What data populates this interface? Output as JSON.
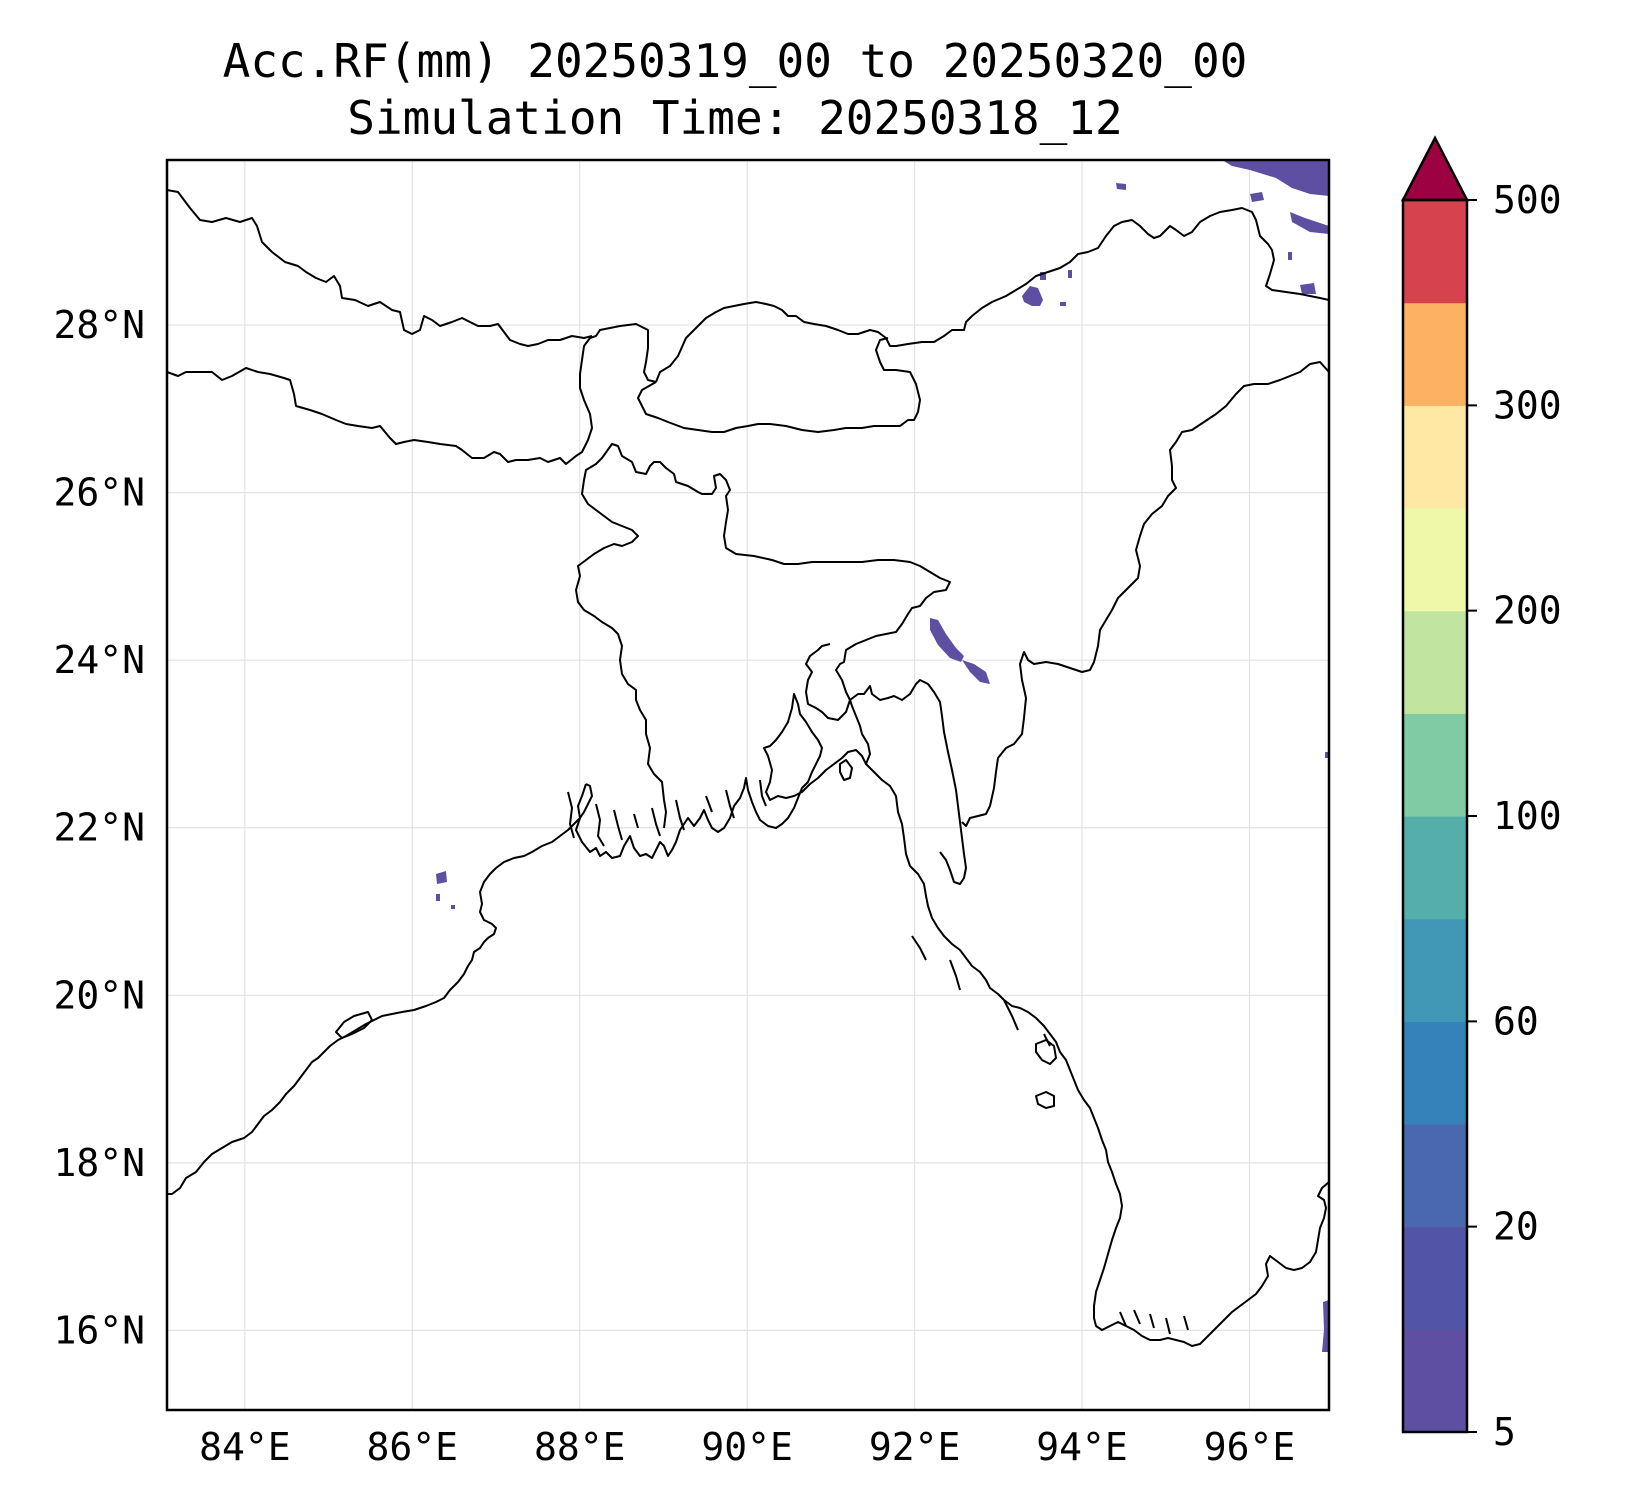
{
  "title": {
    "line1": "Acc.RF(mm) 20250319_00 to 20250320_00",
    "line2": "Simulation Time: 20250318_12"
  },
  "map": {
    "extent": {
      "lon_min": 83.07,
      "lon_max": 96.95,
      "lat_min": 15.05,
      "lat_max": 29.97
    },
    "x_ticks": [
      {
        "lon": 84,
        "label": "84°E"
      },
      {
        "lon": 86,
        "label": "86°E"
      },
      {
        "lon": 88,
        "label": "88°E"
      },
      {
        "lon": 90,
        "label": "90°E"
      },
      {
        "lon": 92,
        "label": "92°E"
      },
      {
        "lon": 94,
        "label": "94°E"
      },
      {
        "lon": 96,
        "label": "96°E"
      }
    ],
    "y_ticks": [
      {
        "lat": 16,
        "label": "16°N"
      },
      {
        "lat": 18,
        "label": "18°N"
      },
      {
        "lat": 20,
        "label": "20°N"
      },
      {
        "lat": 22,
        "label": "22°N"
      },
      {
        "lat": 24,
        "label": "24°N"
      },
      {
        "lat": 26,
        "label": "26°N"
      },
      {
        "lat": 28,
        "label": "28°N"
      }
    ],
    "grid": true
  },
  "colorbar": {
    "extend": "max",
    "bands": [
      "#5e4fa2",
      "#5254a8",
      "#4a68ae",
      "#3582ba",
      "#4198b6",
      "#56aeab",
      "#80cba4",
      "#c1e4a0",
      "#eef8a8",
      "#fee8a4",
      "#fdb163",
      "#d6434e"
    ],
    "extend_color": "#9e0142",
    "tick_labels": [
      {
        "label": "5",
        "frac": 0
      },
      {
        "label": "20",
        "frac": 0.1667
      },
      {
        "label": "60",
        "frac": 0.3333
      },
      {
        "label": "100",
        "frac": 0.5
      },
      {
        "label": "200",
        "frac": 0.6667
      },
      {
        "label": "300",
        "frac": 0.8333
      },
      {
        "label": "500",
        "frac": 1.0
      }
    ]
  },
  "rain_areas": [
    {
      "region": "tibet-northeast",
      "color": "#5e4fa2"
    },
    {
      "region": "arunachal-north",
      "color": "#5e4fa2"
    },
    {
      "region": "tripura-mizoram",
      "color": "#5e4fa2"
    },
    {
      "region": "bay-of-bengal-west",
      "color": "#5e4fa2"
    },
    {
      "region": "myanmar-east-edge",
      "color": "#5e4fa2"
    }
  ]
}
